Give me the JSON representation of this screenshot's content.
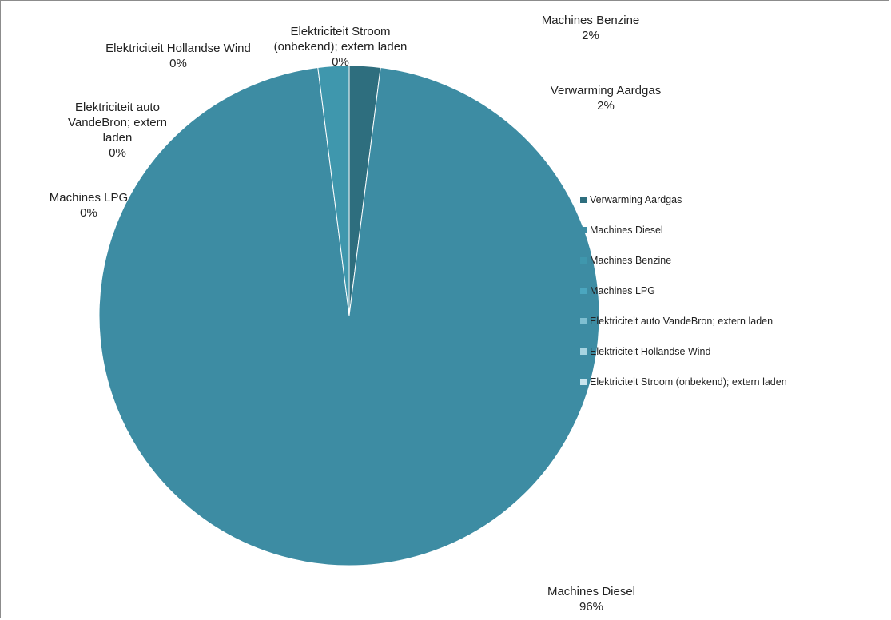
{
  "chart_data": {
    "type": "pie",
    "title": "",
    "series": [
      {
        "values": [
          2,
          96,
          2,
          0,
          0,
          0,
          0
        ]
      }
    ],
    "categories": [
      "Verwarming Aardgas",
      "Machines Diesel",
      "Machines Benzine",
      "Machines LPG",
      "Elektriciteit auto VandeBron; extern laden",
      "Elektriciteit Hollandse Wind",
      "Elektriciteit Stroom (onbekend); extern laden"
    ],
    "data_labels": [
      {
        "name": "Verwarming Aardgas",
        "pct": "2%"
      },
      {
        "name": "Machines Diesel",
        "pct": "96%"
      },
      {
        "name": "Machines Benzine",
        "pct": "2%"
      },
      {
        "name": "Machines LPG",
        "pct": "0%"
      },
      {
        "name": "Elektriciteit auto VandeBron; extern laden",
        "pct": "0%"
      },
      {
        "name": "Elektriciteit Hollandse Wind",
        "pct": "0%"
      },
      {
        "name": "Elektriciteit Stroom (onbekend); extern laden",
        "pct": "0%"
      }
    ],
    "legend": {
      "position": "right",
      "items": [
        "Verwarming Aardgas",
        "Machines Diesel",
        "Machines Benzine",
        "Machines LPG",
        "Elektriciteit auto VandeBron; extern laden",
        "Elektriciteit Hollandse Wind",
        "Elektriciteit Stroom (onbekend); extern laden"
      ]
    },
    "colors": [
      "#2e6e7e",
      "#3d8ca3",
      "#3f97ad",
      "#4ba6bf",
      "#7fbfd1",
      "#a7d4e1",
      "#c9e5ee"
    ],
    "slice_border_color": "#ffffff"
  }
}
